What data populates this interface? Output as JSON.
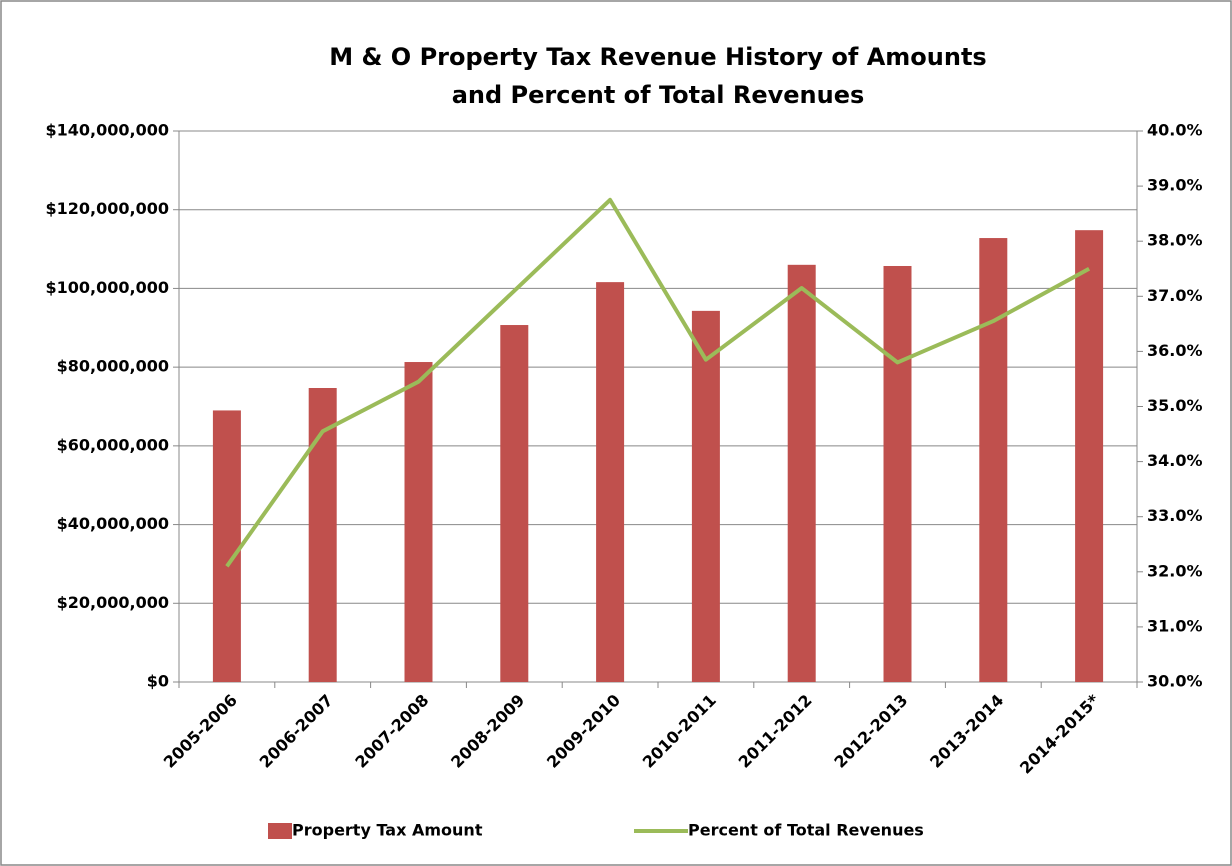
{
  "chart_data": {
    "type": "bar_line",
    "title": [
      "M & O Property Tax Revenue History of Amounts",
      "and Percent of Total Revenues"
    ],
    "categories": [
      "2005-2006",
      "2006-2007",
      "2007-2008",
      "2008-2009",
      "2009-2010",
      "2010-2011",
      "2011-2012",
      "2012-2013",
      "2013-2014",
      "2014-2015*"
    ],
    "series": [
      {
        "name": "Property Tax Amount",
        "type": "bar",
        "color": "#c0504d",
        "values": [
          69000000,
          74700000,
          81300000,
          90700000,
          101600000,
          94300000,
          106000000,
          105700000,
          112800000,
          114800000
        ]
      },
      {
        "name": "Percent of Total Revenues",
        "type": "line",
        "axis": "y2",
        "color": "#9bbb59",
        "values": [
          32.1,
          34.55,
          35.45,
          37.1,
          38.75,
          35.85,
          37.15,
          35.8,
          36.55,
          37.5
        ]
      }
    ],
    "ylim": [
      0,
      140000000
    ],
    "yticks": [
      {
        "value": 0,
        "label": "$0"
      },
      {
        "value": 20000000,
        "label": "$20,000,000"
      },
      {
        "value": 40000000,
        "label": "$40,000,000"
      },
      {
        "value": 60000000,
        "label": "$60,000,000"
      },
      {
        "value": 80000000,
        "label": "$80,000,000"
      },
      {
        "value": 100000000,
        "label": "$100,000,000"
      },
      {
        "value": 120000000,
        "label": "$120,000,000"
      },
      {
        "value": 140000000,
        "label": "$140,000,000"
      }
    ],
    "y2lim": [
      30,
      40
    ],
    "y2ticks": [
      {
        "value": 30,
        "label": "30.0%"
      },
      {
        "value": 31,
        "label": "31.0%"
      },
      {
        "value": 32,
        "label": "32.0%"
      },
      {
        "value": 33,
        "label": "33.0%"
      },
      {
        "value": 34,
        "label": "34.0%"
      },
      {
        "value": 35,
        "label": "35.0%"
      },
      {
        "value": 36,
        "label": "36.0%"
      },
      {
        "value": 37,
        "label": "37.0%"
      },
      {
        "value": 38,
        "label": "38.0%"
      },
      {
        "value": 39,
        "label": "39.0%"
      },
      {
        "value": 40,
        "label": "40.0%"
      }
    ],
    "grid": true,
    "legend": "bottom"
  }
}
